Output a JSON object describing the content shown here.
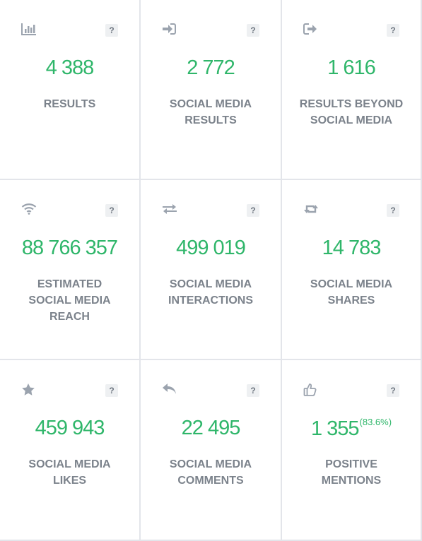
{
  "help_glyph": "?",
  "colors": {
    "value": "#2fb66a",
    "label": "#7b828b",
    "icon": "#9ba3ae",
    "border": "#e3e5ea"
  },
  "cards": [
    {
      "icon": "bar-chart-icon",
      "value": "4 388",
      "label_lines": [
        "RESULTS"
      ]
    },
    {
      "icon": "sign-in-icon",
      "value": "2 772",
      "label_lines": [
        "SOCIAL MEDIA",
        "RESULTS"
      ]
    },
    {
      "icon": "share-out-icon",
      "value": "1 616",
      "label_lines": [
        "RESULTS BEYOND",
        "SOCIAL MEDIA"
      ]
    },
    {
      "icon": "wifi-icon",
      "value": "88 766 357",
      "label_lines": [
        "ESTIMATED",
        "SOCIAL MEDIA",
        "REACH"
      ]
    },
    {
      "icon": "exchange-arrows-icon",
      "value": "499 019",
      "label_lines": [
        "SOCIAL MEDIA",
        "INTERACTIONS"
      ]
    },
    {
      "icon": "retweet-icon",
      "value": "14 783",
      "label_lines": [
        "SOCIAL MEDIA",
        "SHARES"
      ]
    },
    {
      "icon": "star-icon",
      "value": "459 943",
      "label_lines": [
        "SOCIAL MEDIA",
        "LIKES"
      ]
    },
    {
      "icon": "reply-icon",
      "value": "22 495",
      "label_lines": [
        "SOCIAL MEDIA",
        "COMMENTS"
      ]
    },
    {
      "icon": "thumbs-up-icon",
      "value": "1 355",
      "value_suffix": "(83.6%)",
      "label_lines": [
        "POSITIVE",
        "MENTIONS"
      ]
    }
  ]
}
